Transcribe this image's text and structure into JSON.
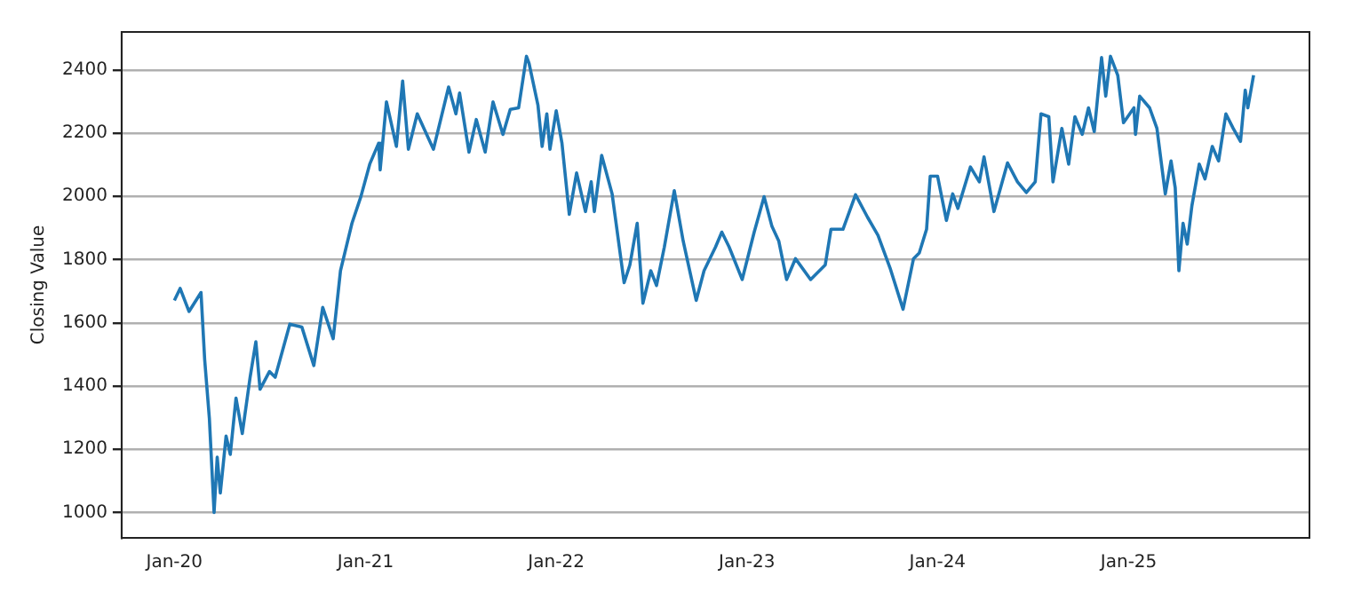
{
  "chart_data": {
    "type": "line",
    "ylabel": "Closing Value",
    "grid": "y",
    "legend": false,
    "marker": "none",
    "line_style": "solid",
    "xlim": [
      "2019-09-22",
      "2025-12-13"
    ],
    "ylim": [
      920,
      2520
    ],
    "xticks": [
      {
        "value": "2020-01-01",
        "label": "Jan-20"
      },
      {
        "value": "2021-01-01",
        "label": "Jan-21"
      },
      {
        "value": "2022-01-01",
        "label": "Jan-22"
      },
      {
        "value": "2023-01-01",
        "label": "Jan-23"
      },
      {
        "value": "2024-01-01",
        "label": "Jan-24"
      },
      {
        "value": "2025-01-01",
        "label": "Jan-25"
      }
    ],
    "yticks": [
      1000,
      1200,
      1400,
      1600,
      1800,
      2000,
      2200,
      2400
    ],
    "series": [
      {
        "color": "#1f77b4",
        "x": [
          "2020-01-01",
          "2020-01-12",
          "2020-01-29",
          "2020-02-21",
          "2020-02-28",
          "2020-03-08",
          "2020-03-17",
          "2020-03-23",
          "2020-03-29",
          "2020-04-09",
          "2020-04-17",
          "2020-04-28",
          "2020-05-10",
          "2020-05-25",
          "2020-06-05",
          "2020-06-13",
          "2020-07-01",
          "2020-07-12",
          "2020-08-09",
          "2020-09-01",
          "2020-09-24",
          "2020-10-11",
          "2020-10-31",
          "2020-11-14",
          "2020-12-06",
          "2020-12-23",
          "2021-01-09",
          "2021-01-26",
          "2021-01-29",
          "2021-02-10",
          "2021-03-01",
          "2021-03-13",
          "2021-03-24",
          "2021-04-10",
          "2021-05-11",
          "2021-06-09",
          "2021-06-23",
          "2021-06-30",
          "2021-07-18",
          "2021-08-01",
          "2021-08-18",
          "2021-09-02",
          "2021-09-21",
          "2021-10-05",
          "2021-10-21",
          "2021-11-05",
          "2021-11-10",
          "2021-11-27",
          "2021-12-05",
          "2021-12-14",
          "2021-12-20",
          "2022-01-01",
          "2022-01-12",
          "2022-01-26",
          "2022-02-09",
          "2022-02-26",
          "2022-03-09",
          "2022-03-15",
          "2022-03-29",
          "2022-04-18",
          "2022-05-11",
          "2022-05-22",
          "2022-06-05",
          "2022-06-16",
          "2022-07-01",
          "2022-07-12",
          "2022-07-27",
          "2022-08-15",
          "2022-09-01",
          "2022-09-26",
          "2022-10-11",
          "2022-11-02",
          "2022-11-14",
          "2022-11-28",
          "2022-12-23",
          "2023-01-15",
          "2023-02-03",
          "2023-02-18",
          "2023-03-03",
          "2023-03-18",
          "2023-04-04",
          "2023-05-03",
          "2023-05-31",
          "2023-06-11",
          "2023-07-04",
          "2023-07-28",
          "2023-08-20",
          "2023-09-09",
          "2023-10-02",
          "2023-10-27",
          "2023-11-16",
          "2023-11-27",
          "2023-12-11",
          "2023-12-18",
          "2024-01-01",
          "2024-01-18",
          "2024-01-30",
          "2024-02-09",
          "2024-03-04",
          "2024-03-21",
          "2024-03-30",
          "2024-04-18",
          "2024-05-14",
          "2024-06-02",
          "2024-06-19",
          "2024-07-06",
          "2024-07-17",
          "2024-08-01",
          "2024-08-09",
          "2024-08-26",
          "2024-09-08",
          "2024-09-20",
          "2024-10-04",
          "2024-10-16",
          "2024-10-27",
          "2024-11-10",
          "2024-11-18",
          "2024-11-27",
          "2024-12-11",
          "2024-12-22",
          "2025-01-11",
          "2025-01-14",
          "2025-01-22",
          "2025-02-10",
          "2025-02-24",
          "2025-03-12",
          "2025-03-23",
          "2025-03-31",
          "2025-04-07",
          "2025-04-15",
          "2025-04-23",
          "2025-05-02",
          "2025-05-16",
          "2025-05-27",
          "2025-06-10",
          "2025-06-22",
          "2025-07-06",
          "2025-07-20",
          "2025-08-03",
          "2025-08-12",
          "2025-08-17",
          "2025-08-28"
        ],
        "values": [
          1671,
          1709,
          1636,
          1696,
          1484,
          1298,
          1000,
          1175,
          1062,
          1242,
          1184,
          1362,
          1250,
          1428,
          1540,
          1390,
          1446,
          1428,
          1596,
          1587,
          1465,
          1649,
          1550,
          1765,
          1915,
          1999,
          2102,
          2168,
          2084,
          2299,
          2158,
          2365,
          2149,
          2261,
          2149,
          2346,
          2261,
          2327,
          2140,
          2243,
          2140,
          2299,
          2196,
          2275,
          2280,
          2443,
          2421,
          2289,
          2158,
          2261,
          2149,
          2271,
          2168,
          1943,
          2074,
          1952,
          2046,
          1952,
          2130,
          2008,
          1727,
          1783,
          1915,
          1662,
          1765,
          1718,
          1840,
          2018,
          1859,
          1671,
          1765,
          1840,
          1887,
          1840,
          1737,
          1887,
          1999,
          1905,
          1859,
          1737,
          1803,
          1737,
          1783,
          1896,
          1896,
          2005,
          1934,
          1877,
          1774,
          1643,
          1803,
          1821,
          1896,
          2064,
          2064,
          1924,
          2008,
          1962,
          2093,
          2046,
          2125,
          1952,
          2106,
          2046,
          2012,
          2046,
          2261,
          2252,
          2046,
          2215,
          2102,
          2252,
          2196,
          2280,
          2205,
          2439,
          2317,
          2443,
          2383,
          2233,
          2280,
          2196,
          2317,
          2280,
          2215,
          2008,
          2112,
          2027,
          1765,
          1915,
          1849,
          1971,
          2102,
          2055,
          2158,
          2112,
          2261,
          2215,
          2174,
          2336,
          2280,
          2383
        ]
      }
    ]
  }
}
